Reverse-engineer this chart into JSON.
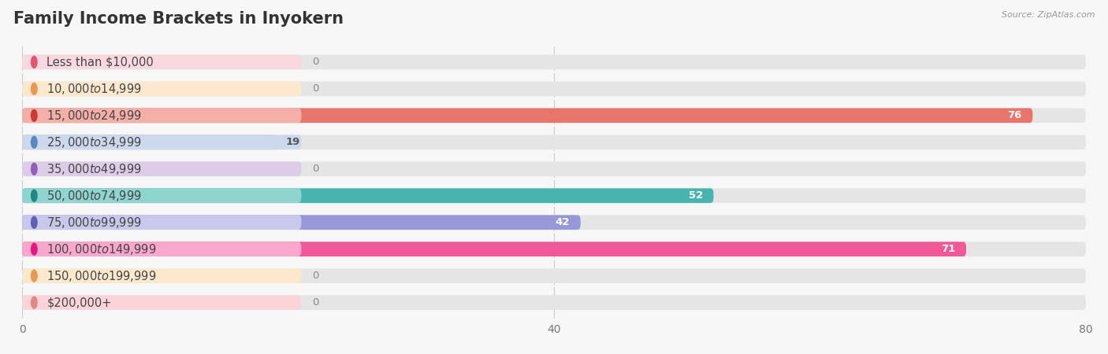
{
  "title": "Family Income Brackets in Inyokern",
  "source": "Source: ZipAtlas.com",
  "categories": [
    "Less than $10,000",
    "$10,000 to $14,999",
    "$15,000 to $24,999",
    "$25,000 to $34,999",
    "$35,000 to $49,999",
    "$50,000 to $74,999",
    "$75,000 to $99,999",
    "$100,000 to $149,999",
    "$150,000 to $199,999",
    "$200,000+"
  ],
  "values": [
    0,
    0,
    76,
    19,
    0,
    52,
    42,
    71,
    0,
    0
  ],
  "bar_colors": [
    "#f2a0b4",
    "#f8c89a",
    "#e8746a",
    "#a0bcd8",
    "#c8a8d8",
    "#48b4b0",
    "#9898d8",
    "#f05898",
    "#f8c89a",
    "#f4b0b8"
  ],
  "label_bg_colors": [
    "#fad8e0",
    "#fce8cc",
    "#f4b0a8",
    "#ccd8ec",
    "#dccce8",
    "#90d4d0",
    "#c8c8ec",
    "#f8a8cc",
    "#fce8cc",
    "#fad4d8"
  ],
  "dot_colors": [
    "#e05870",
    "#e89850",
    "#cc3838",
    "#5888c0",
    "#9060b8",
    "#208888",
    "#6060b8",
    "#e01880",
    "#e89850",
    "#e08888"
  ],
  "xlim": [
    0,
    80
  ],
  "xticks": [
    0,
    40,
    80
  ],
  "bg_color": "#f7f7f7",
  "bar_bg_color": "#e5e5e5",
  "title_fontsize": 15,
  "label_fontsize": 10.5,
  "value_fontsize": 9.5
}
